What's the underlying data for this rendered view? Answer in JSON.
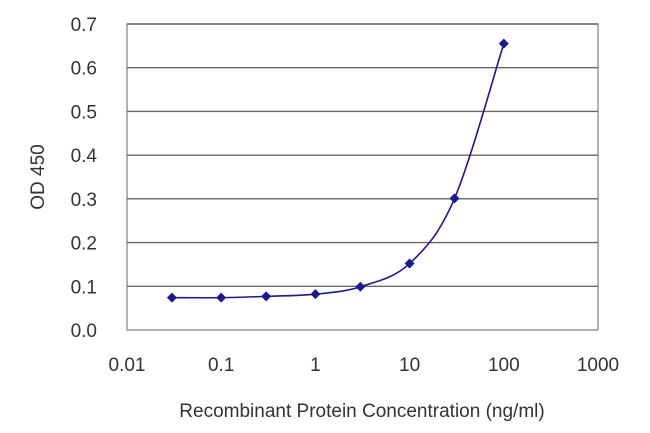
{
  "chart_data": {
    "type": "line",
    "title": "",
    "xlabel": "Recombinant Protein Concentration (ng/ml)",
    "ylabel": "OD 450",
    "x_scale": "log",
    "xlim": [
      0.01,
      1000
    ],
    "ylim": [
      0,
      0.7
    ],
    "x_ticks": [
      "0.01",
      "0.1",
      "1",
      "10",
      "100",
      "1000"
    ],
    "y_ticks": [
      "0.0",
      "0.1",
      "0.2",
      "0.3",
      "0.4",
      "0.5",
      "0.6",
      "0.7"
    ],
    "grid": "horizontal",
    "legend": "none",
    "series": [
      {
        "color": "#1a1a8c",
        "x": [
          0.03,
          0.1,
          0.3,
          1,
          3,
          10,
          30,
          100
        ],
        "y": [
          0.074,
          0.074,
          0.077,
          0.082,
          0.099,
          0.152,
          0.301,
          0.655
        ]
      }
    ]
  }
}
